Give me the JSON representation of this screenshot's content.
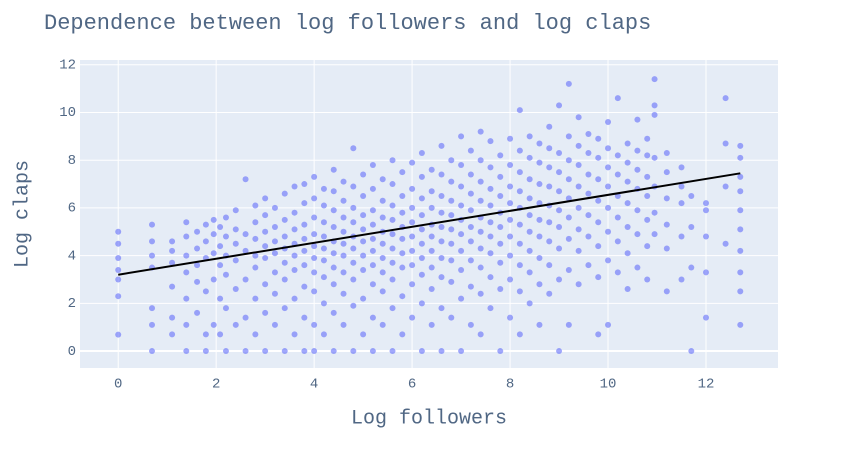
{
  "chart_data": {
    "type": "scatter",
    "title": "Dependence between log followers and log claps",
    "x_label": "Log followers",
    "y_label": "Log claps",
    "xlim": [
      -0.78,
      13.47
    ],
    "ylim": [
      -0.71,
      12.2
    ],
    "xticks": [
      0,
      2,
      4,
      6,
      8,
      10,
      12
    ],
    "yticks": [
      0,
      2,
      4,
      6,
      8,
      10,
      12
    ],
    "grid": true,
    "background": "#e5ecf6",
    "series": [
      {
        "type": "scatter",
        "color": "#636efa",
        "opacity": 0.6,
        "x": [
          0,
          0,
          0,
          0,
          0,
          0,
          0,
          0.69,
          0.69,
          0.69,
          0.69,
          0.69,
          0.69,
          0.69,
          1.1,
          1.1,
          1.1,
          1.1,
          1.1,
          1.1,
          1.39,
          1.39,
          1.39,
          1.39,
          1.39,
          1.39,
          1.39,
          1.61,
          1.61,
          1.61,
          1.61,
          1.61,
          1.79,
          1.79,
          1.79,
          1.79,
          1.79,
          1.79,
          1.95,
          1.95,
          1.95,
          1.95,
          1.95,
          2.08,
          2.08,
          2.08,
          2.08,
          2.08,
          2.2,
          2.2,
          2.2,
          2.2,
          2.2,
          2.2,
          2.4,
          2.4,
          2.4,
          2.4,
          2.4,
          2.4,
          2.6,
          2.6,
          2.6,
          2.6,
          2.6,
          2.6,
          2.8,
          2.8,
          2.8,
          2.8,
          2.8,
          2.8,
          2.8,
          3.0,
          3.0,
          3.0,
          3.0,
          3.0,
          3.0,
          3.0,
          3.0,
          3.2,
          3.2,
          3.2,
          3.2,
          3.2,
          3.2,
          3.2,
          3.4,
          3.4,
          3.4,
          3.4,
          3.4,
          3.4,
          3.4,
          3.4,
          3.6,
          3.6,
          3.6,
          3.6,
          3.6,
          3.6,
          3.6,
          3.6,
          3.8,
          3.8,
          3.8,
          3.8,
          3.8,
          3.8,
          3.8,
          3.8,
          3.8,
          4.0,
          4.0,
          4.0,
          4.0,
          4.0,
          4.0,
          4.0,
          4.0,
          4.0,
          4.0,
          4.2,
          4.2,
          4.2,
          4.2,
          4.2,
          4.2,
          4.2,
          4.2,
          4.2,
          4.4,
          4.4,
          4.4,
          4.4,
          4.4,
          4.4,
          4.4,
          4.4,
          4.4,
          4.4,
          4.6,
          4.6,
          4.6,
          4.6,
          4.6,
          4.6,
          4.6,
          4.6,
          4.6,
          4.8,
          4.8,
          4.8,
          4.8,
          4.8,
          4.8,
          4.8,
          4.8,
          4.8,
          4.8,
          5.0,
          5.0,
          5.0,
          5.0,
          5.0,
          5.0,
          5.0,
          5.0,
          5.0,
          5.2,
          5.2,
          5.2,
          5.2,
          5.2,
          5.2,
          5.2,
          5.2,
          5.2,
          5.2,
          5.4,
          5.4,
          5.4,
          5.4,
          5.4,
          5.4,
          5.4,
          5.4,
          5.4,
          5.6,
          5.6,
          5.6,
          5.6,
          5.6,
          5.6,
          5.6,
          5.6,
          5.6,
          5.6,
          5.8,
          5.8,
          5.8,
          5.8,
          5.8,
          5.8,
          5.8,
          5.8,
          5.8,
          6.0,
          6.0,
          6.0,
          6.0,
          6.0,
          6.0,
          6.0,
          6.0,
          6.0,
          6.2,
          6.2,
          6.2,
          6.2,
          6.2,
          6.2,
          6.2,
          6.2,
          6.2,
          6.2,
          6.4,
          6.4,
          6.4,
          6.4,
          6.4,
          6.4,
          6.4,
          6.4,
          6.4,
          6.6,
          6.6,
          6.6,
          6.6,
          6.6,
          6.6,
          6.6,
          6.6,
          6.6,
          6.6,
          6.8,
          6.8,
          6.8,
          6.8,
          6.8,
          6.8,
          6.8,
          6.8,
          6.8,
          7.0,
          7.0,
          7.0,
          7.0,
          7.0,
          7.0,
          7.0,
          7.0,
          7.0,
          7.0,
          7.2,
          7.2,
          7.2,
          7.2,
          7.2,
          7.2,
          7.2,
          7.2,
          7.2,
          7.4,
          7.4,
          7.4,
          7.4,
          7.4,
          7.4,
          7.4,
          7.4,
          7.4,
          7.4,
          7.6,
          7.6,
          7.6,
          7.6,
          7.6,
          7.6,
          7.6,
          7.6,
          7.6,
          7.8,
          7.8,
          7.8,
          7.8,
          7.8,
          7.8,
          7.8,
          7.8,
          7.8,
          8.0,
          8.0,
          8.0,
          8.0,
          8.0,
          8.0,
          8.0,
          8.0,
          8.0,
          8.2,
          8.2,
          8.2,
          8.2,
          8.2,
          8.2,
          8.2,
          8.2,
          8.2,
          8.2,
          8.4,
          8.4,
          8.4,
          8.4,
          8.4,
          8.4,
          8.4,
          8.4,
          8.4,
          8.6,
          8.6,
          8.6,
          8.6,
          8.6,
          8.6,
          8.6,
          8.6,
          8.6,
          8.8,
          8.8,
          8.8,
          8.8,
          8.8,
          8.8,
          8.8,
          8.8,
          8.8,
          9.0,
          9.0,
          9.0,
          9.0,
          9.0,
          9.0,
          9.0,
          9.0,
          9.0,
          9.2,
          9.2,
          9.2,
          9.2,
          9.2,
          9.2,
          9.2,
          9.2,
          9.2,
          9.4,
          9.4,
          9.4,
          9.4,
          9.4,
          9.4,
          9.4,
          9.4,
          9.6,
          9.6,
          9.6,
          9.6,
          9.6,
          9.6,
          9.6,
          9.8,
          9.8,
          9.8,
          9.8,
          9.8,
          9.8,
          9.8,
          9.8,
          10.0,
          10.0,
          10.0,
          10.0,
          10.0,
          10.0,
          10.0,
          10.0,
          10.2,
          10.2,
          10.2,
          10.2,
          10.2,
          10.2,
          10.2,
          10.4,
          10.4,
          10.4,
          10.4,
          10.4,
          10.4,
          10.4,
          10.6,
          10.6,
          10.6,
          10.6,
          10.6,
          10.6,
          10.6,
          10.8,
          10.8,
          10.8,
          10.8,
          10.8,
          10.8,
          10.8,
          10.95,
          10.95,
          10.95,
          10.95,
          10.95,
          10.95,
          10.95,
          11.2,
          11.2,
          11.2,
          11.2,
          11.2,
          11.2,
          11.5,
          11.5,
          11.5,
          11.5,
          11.5,
          11.7,
          11.7,
          11.7,
          11.7,
          12.0,
          12.0,
          12.0,
          12.0,
          12.0,
          12.4,
          12.4,
          12.4,
          12.4,
          12.7,
          12.7,
          12.7,
          12.7,
          12.7,
          12.7,
          12.7,
          12.7,
          12.7,
          12.7
        ],
        "values": [
          0.69,
          2.3,
          3.0,
          3.4,
          3.9,
          4.5,
          5.0,
          0,
          1.1,
          1.8,
          3.5,
          4.0,
          4.6,
          5.3,
          0.7,
          1.4,
          2.7,
          3.7,
          4.2,
          4.6,
          0,
          1.1,
          2.2,
          3.3,
          4.0,
          4.8,
          5.4,
          1.6,
          2.9,
          3.6,
          4.3,
          5.0,
          0,
          0.7,
          2.5,
          3.9,
          4.6,
          5.3,
          1.1,
          3.0,
          4.1,
          4.9,
          5.5,
          0.7,
          2.2,
          3.6,
          4.4,
          5.2,
          0,
          1.8,
          3.2,
          4.0,
          4.8,
          5.6,
          1.1,
          2.6,
          3.8,
          4.5,
          5.1,
          5.9,
          0,
          1.4,
          3.0,
          4.2,
          4.9,
          7.2,
          0.7,
          2.2,
          3.5,
          4.0,
          4.7,
          5.4,
          6.1,
          0,
          1.6,
          2.8,
          3.9,
          4.4,
          5.0,
          5.7,
          6.4,
          1.1,
          2.4,
          3.3,
          4.1,
          4.6,
          5.2,
          6.0,
          0,
          1.8,
          3.0,
          3.7,
          4.3,
          4.8,
          5.5,
          6.6,
          0.7,
          2.2,
          3.4,
          4.0,
          4.5,
          5.1,
          5.8,
          6.9,
          0,
          1.4,
          2.7,
          3.6,
          4.2,
          4.7,
          5.3,
          6.2,
          7.0,
          0,
          1.1,
          2.5,
          3.3,
          3.9,
          4.4,
          4.9,
          5.6,
          6.4,
          7.3,
          0.7,
          2.0,
          3.1,
          3.8,
          4.3,
          4.8,
          5.4,
          6.1,
          6.8,
          0,
          1.6,
          2.8,
          3.5,
          4.1,
          4.6,
          5.2,
          5.9,
          6.7,
          7.6,
          1.1,
          2.4,
          3.3,
          4.0,
          4.5,
          5.0,
          5.6,
          6.3,
          7.1,
          0,
          1.9,
          3.0,
          3.7,
          4.3,
          4.8,
          5.4,
          6.0,
          6.9,
          8.5,
          0.7,
          2.2,
          3.4,
          4.0,
          4.6,
          5.1,
          5.7,
          6.5,
          7.4,
          0,
          1.4,
          2.8,
          3.6,
          4.2,
          4.7,
          5.3,
          5.9,
          6.8,
          7.8,
          1.1,
          2.5,
          3.3,
          3.9,
          4.5,
          5.0,
          5.6,
          6.3,
          7.2,
          0,
          1.8,
          3.0,
          3.7,
          4.3,
          4.9,
          5.5,
          6.1,
          7.0,
          8.0,
          0.7,
          2.3,
          3.5,
          4.1,
          4.7,
          5.2,
          5.8,
          6.5,
          7.5,
          1.4,
          2.8,
          3.6,
          4.2,
          4.8,
          5.4,
          6.0,
          6.8,
          7.9,
          0,
          2.0,
          3.2,
          3.9,
          4.5,
          5.1,
          5.7,
          6.4,
          7.3,
          8.3,
          1.1,
          2.6,
          3.5,
          4.2,
          4.8,
          5.3,
          6.0,
          6.7,
          7.6,
          0,
          1.8,
          3.1,
          3.9,
          4.6,
          5.2,
          5.8,
          6.5,
          7.4,
          8.6,
          1.4,
          2.9,
          3.8,
          4.5,
          5.1,
          5.7,
          6.3,
          7.1,
          8.0,
          0,
          2.2,
          3.4,
          4.2,
          4.9,
          5.5,
          6.1,
          6.9,
          7.8,
          9.0,
          1.1,
          2.7,
          3.8,
          4.6,
          5.2,
          5.9,
          6.6,
          7.4,
          8.4,
          0.7,
          2.4,
          3.5,
          4.3,
          5.0,
          5.6,
          6.3,
          7.1,
          8.0,
          9.2,
          1.8,
          3.1,
          4.1,
          4.8,
          5.4,
          6.1,
          6.8,
          7.7,
          8.8,
          0,
          2.6,
          3.7,
          4.5,
          5.2,
          5.8,
          6.5,
          7.3,
          8.2,
          1.4,
          3.0,
          4.0,
          4.8,
          5.5,
          6.2,
          6.9,
          7.8,
          8.9,
          0.7,
          2.5,
          3.6,
          4.5,
          5.3,
          6.0,
          6.7,
          7.5,
          8.4,
          10.1,
          2.0,
          3.3,
          4.2,
          5.0,
          5.7,
          6.4,
          7.2,
          8.1,
          9.0,
          1.1,
          2.8,
          3.9,
          4.8,
          5.5,
          6.2,
          7.0,
          7.9,
          8.7,
          2.4,
          3.6,
          4.6,
          5.4,
          6.1,
          6.9,
          7.7,
          8.5,
          9.4,
          0,
          3.0,
          4.3,
          5.2,
          5.9,
          6.7,
          7.5,
          8.3,
          10.3,
          1.1,
          3.4,
          4.7,
          5.6,
          6.4,
          7.2,
          8.0,
          9.0,
          11.2,
          2.8,
          4.2,
          5.1,
          6.0,
          6.9,
          7.8,
          8.6,
          9.8,
          3.6,
          4.8,
          5.7,
          6.6,
          7.4,
          8.3,
          9.1,
          0.7,
          3.1,
          4.4,
          5.4,
          6.3,
          7.2,
          8.1,
          8.9,
          1.1,
          3.8,
          5.0,
          6.0,
          6.9,
          7.7,
          8.5,
          9.6,
          3.3,
          4.6,
          5.6,
          6.5,
          7.4,
          8.2,
          10.6,
          2.6,
          4.1,
          5.2,
          6.2,
          7.1,
          7.9,
          8.7,
          3.5,
          4.9,
          5.9,
          6.8,
          7.6,
          8.4,
          9.7,
          3.0,
          4.4,
          5.5,
          6.5,
          7.3,
          8.2,
          8.9,
          4.9,
          5.8,
          6.9,
          8.1,
          9.9,
          10.3,
          11.4,
          2.5,
          4.3,
          5.3,
          6.4,
          7.5,
          8.3,
          3.0,
          4.8,
          6.2,
          6.9,
          7.7,
          0,
          3.5,
          5.2,
          6.5,
          1.4,
          3.3,
          4.8,
          5.9,
          6.2,
          4.5,
          6.9,
          8.7,
          10.6,
          1.1,
          2.5,
          3.3,
          4.2,
          5.1,
          5.9,
          6.7,
          7.3,
          8.1,
          8.6
        ]
      },
      {
        "type": "line",
        "color": "#000000",
        "x": [
          0,
          12.7
        ],
        "values": [
          3.2,
          7.45
        ]
      }
    ]
  }
}
